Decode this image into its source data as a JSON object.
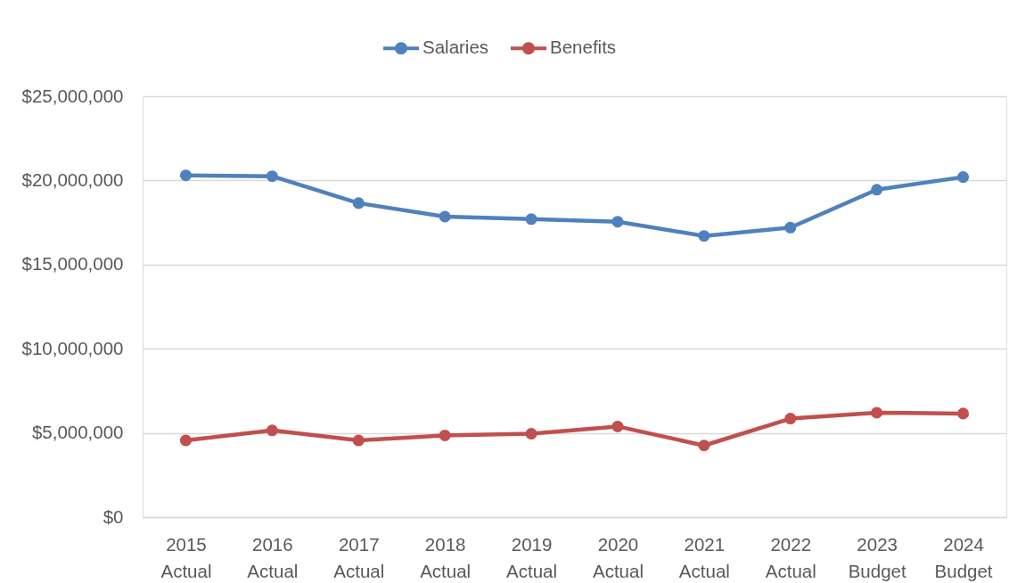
{
  "chart_data": {
    "type": "line",
    "categories": [
      "2015 Actual",
      "2016 Actual",
      "2017 Actual",
      "2018 Actual",
      "2019 Actual",
      "2020 Actual",
      "2021 Actual",
      "2022 Actual",
      "2023 Budget",
      "2024 Budget"
    ],
    "series": [
      {
        "name": "Salaries",
        "color": "#4f81bd",
        "values": [
          20300000,
          20250000,
          18650000,
          17850000,
          17700000,
          17550000,
          16700000,
          17200000,
          19450000,
          20200000
        ]
      },
      {
        "name": "Benefits",
        "color": "#c0504d",
        "values": [
          4550000,
          5150000,
          4550000,
          4850000,
          4950000,
          5380000,
          4250000,
          5850000,
          6200000,
          6150000
        ]
      }
    ],
    "ylim": [
      0,
      25000000
    ],
    "yticks": [
      {
        "value": 0,
        "label": "$0"
      },
      {
        "value": 5000000,
        "label": "$5,000,000"
      },
      {
        "value": 10000000,
        "label": "$10,000,000"
      },
      {
        "value": 15000000,
        "label": "$15,000,000"
      },
      {
        "value": 20000000,
        "label": "$20,000,000"
      },
      {
        "value": 25000000,
        "label": "$25,000,000"
      }
    ],
    "grid": "y",
    "legend": "top",
    "marker": "circle",
    "line_style": "solid"
  }
}
